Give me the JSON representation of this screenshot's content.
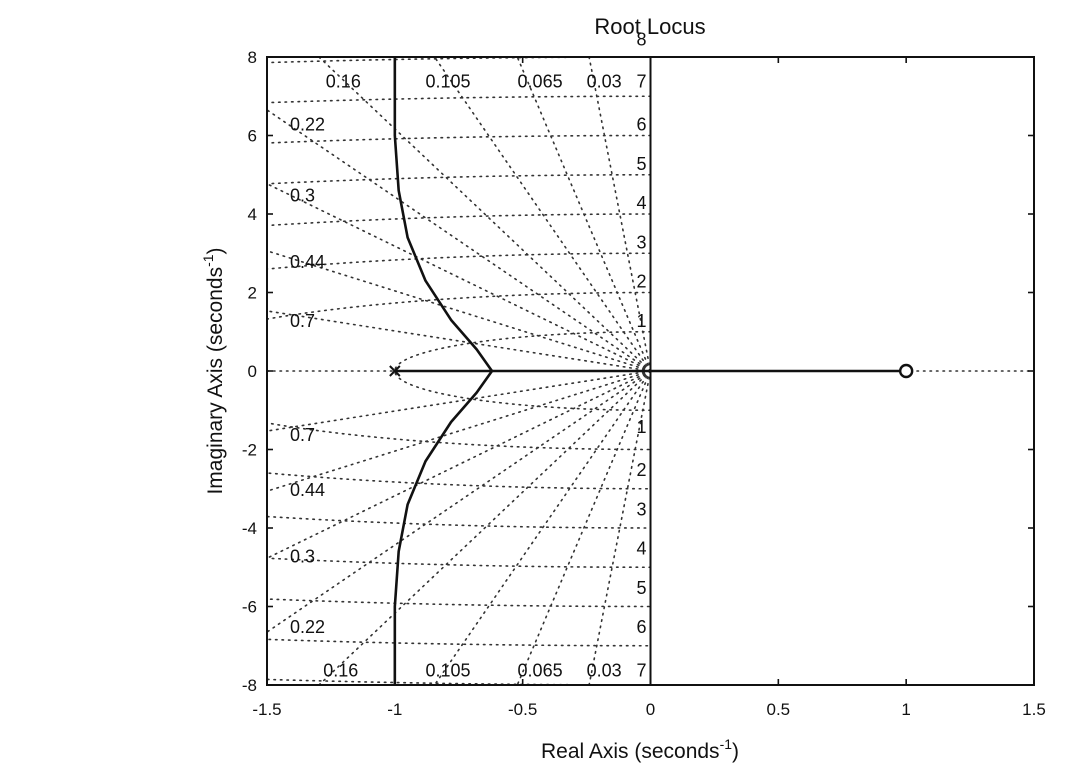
{
  "chart_data": {
    "type": "line",
    "title": "Root Locus",
    "xlabel": "Real Axis (seconds",
    "ylabel": "Imaginary Axis (seconds",
    "label_exponent": "-1",
    "label_close": ")",
    "xlim": [
      -1.5,
      1.5
    ],
    "ylim": [
      -8,
      8
    ],
    "x_ticks": [
      {
        "value": -1.5,
        "label": "-1.5"
      },
      {
        "value": -1,
        "label": "-1"
      },
      {
        "value": -0.5,
        "label": "-0.5"
      },
      {
        "value": 0,
        "label": "0"
      },
      {
        "value": 0.5,
        "label": "0.5"
      },
      {
        "value": 1,
        "label": "1"
      },
      {
        "value": 1.5,
        "label": "1.5"
      }
    ],
    "y_ticks": [
      {
        "value": 8,
        "label": "8"
      },
      {
        "value": 6,
        "label": "6"
      },
      {
        "value": 4,
        "label": "4"
      },
      {
        "value": 2,
        "label": "2"
      },
      {
        "value": 0,
        "label": "0"
      },
      {
        "value": -2,
        "label": "-2"
      },
      {
        "value": -4,
        "label": "-4"
      },
      {
        "value": -6,
        "label": "-6"
      },
      {
        "value": -8,
        "label": "-8"
      }
    ],
    "poles": [
      [
        -1,
        0
      ]
    ],
    "zeros": [
      [
        1,
        0
      ]
    ],
    "series": [
      {
        "values": [
          [
            -1,
            0
          ],
          [
            -0.62,
            0
          ]
        ]
      },
      {
        "values": [
          [
            -0.62,
            0
          ],
          [
            0,
            0
          ],
          [
            1,
            0
          ]
        ]
      },
      {
        "values": [
          [
            -0.62,
            0
          ],
          [
            -0.68,
            0.55
          ],
          [
            -0.78,
            1.3
          ],
          [
            -0.88,
            2.3
          ],
          [
            -0.95,
            3.4
          ],
          [
            -0.985,
            4.6
          ],
          [
            -1.0,
            6.0
          ],
          [
            -1.0,
            8.0
          ]
        ]
      },
      {
        "values": [
          [
            -0.62,
            0
          ],
          [
            -0.68,
            -0.55
          ],
          [
            -0.78,
            -1.3
          ],
          [
            -0.88,
            -2.3
          ],
          [
            -0.95,
            -3.4
          ],
          [
            -0.985,
            -4.6
          ],
          [
            -1.0,
            -6.0
          ],
          [
            -1.0,
            -8.0
          ]
        ]
      }
    ],
    "grid": true,
    "damping_labels": [
      {
        "text": "0.16",
        "x": -1.27,
        "y": 7.4
      },
      {
        "text": "0.105",
        "x": -0.88,
        "y": 7.4
      },
      {
        "text": "0.065",
        "x": -0.52,
        "y": 7.4
      },
      {
        "text": "0.03",
        "x": -0.25,
        "y": 7.4
      },
      {
        "text": "0.22",
        "x": -1.41,
        "y": 6.3
      },
      {
        "text": "0.3",
        "x": -1.41,
        "y": 4.5
      },
      {
        "text": "0.44",
        "x": -1.41,
        "y": 2.8
      },
      {
        "text": "0.7",
        "x": -1.41,
        "y": 1.3
      },
      {
        "text": "0.7",
        "x": -1.41,
        "y": -1.6
      },
      {
        "text": "0.44",
        "x": -1.41,
        "y": -3.0
      },
      {
        "text": "0.3",
        "x": -1.41,
        "y": -4.7
      },
      {
        "text": "0.22",
        "x": -1.41,
        "y": -6.5
      },
      {
        "text": "0.16",
        "x": -1.28,
        "y": -7.6
      },
      {
        "text": "0.105",
        "x": -0.88,
        "y": -7.6
      },
      {
        "text": "0.065",
        "x": -0.52,
        "y": -7.6
      },
      {
        "text": "0.03",
        "x": -0.25,
        "y": -7.6
      }
    ],
    "frequency_labels": [
      {
        "text": "7",
        "y": 7.4
      },
      {
        "text": "6",
        "y": 6.3
      },
      {
        "text": "5",
        "y": 5.3
      },
      {
        "text": "4",
        "y": 4.3
      },
      {
        "text": "3",
        "y": 3.3
      },
      {
        "text": "2",
        "y": 2.3
      },
      {
        "text": "1",
        "y": 1.3
      },
      {
        "text": "1",
        "y": -1.4
      },
      {
        "text": "2",
        "y": -2.5
      },
      {
        "text": "3",
        "y": -3.5
      },
      {
        "text": "4",
        "y": -4.5
      },
      {
        "text": "5",
        "y": -5.5
      },
      {
        "text": "6",
        "y": -6.5
      },
      {
        "text": "7",
        "y": -7.6
      }
    ],
    "frequency_top_label": {
      "text": "8",
      "y": 8.4
    },
    "damping_ratios": [
      0.03,
      0.065,
      0.105,
      0.16,
      0.22,
      0.3,
      0.44,
      0.7
    ],
    "natural_frequencies": [
      1,
      2,
      3,
      4,
      5,
      6,
      7,
      8
    ]
  }
}
